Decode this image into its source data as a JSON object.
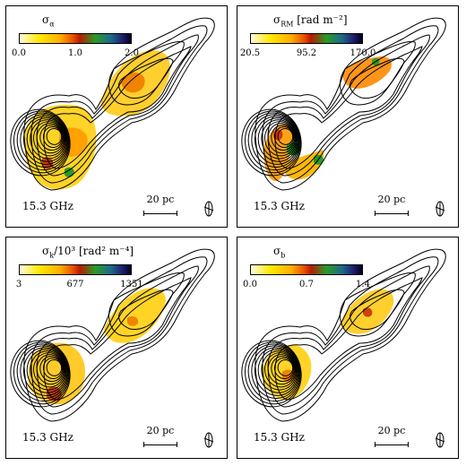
{
  "panels": [
    {
      "colorbar": {
        "label": "σ_α",
        "ticks": [
          "0.0",
          "1.0",
          "2.0"
        ]
      },
      "frequency": "15.3 GHz",
      "scale_bar": "20 pc",
      "fill_pattern": "alpha"
    },
    {
      "colorbar": {
        "label": "σ_RM [rad m⁻²]",
        "ticks": [
          "20.5",
          "95.2",
          "170.0"
        ]
      },
      "frequency": "15.3 GHz",
      "scale_bar": "20 pc",
      "fill_pattern": "rm"
    },
    {
      "colorbar": {
        "label": "σ_k/10³ [rad² m⁻⁴]",
        "ticks": [
          "3",
          "677",
          "1351"
        ]
      },
      "frequency": "15.3 GHz",
      "scale_bar": "20 pc",
      "fill_pattern": "k"
    },
    {
      "colorbar": {
        "label": "σ_b",
        "ticks": [
          "0.0",
          "0.7",
          "1.4"
        ]
      },
      "frequency": "15.3 GHz",
      "scale_bar": "20 pc",
      "fill_pattern": "b"
    }
  ],
  "chart_data": [
    {
      "type": "heatmap",
      "title": "σ_α",
      "colorbar_range": [
        0.0,
        2.0
      ],
      "colorbar_ticks": [
        0.0,
        1.0,
        2.0
      ],
      "colormap": [
        "#fffbe0",
        "#ffe800",
        "#ffb000",
        "#e85000",
        "#b81a00",
        "#2a9a28",
        "#1e6a8a",
        "#202070",
        "#000020"
      ],
      "contours": true,
      "frequency": "15.3 GHz",
      "scale_bar": "20 pc"
    },
    {
      "type": "heatmap",
      "title": "σ_RM [rad m⁻²]",
      "colorbar_range": [
        20.5,
        170.0
      ],
      "colorbar_ticks": [
        20.5,
        95.2,
        170.0
      ],
      "contours": true,
      "frequency": "15.3 GHz",
      "scale_bar": "20 pc"
    },
    {
      "type": "heatmap",
      "title": "σ_k/10³ [rad² m⁻⁴]",
      "colorbar_range": [
        3,
        1351
      ],
      "colorbar_ticks": [
        3,
        677,
        1351
      ],
      "contours": true,
      "frequency": "15.3 GHz",
      "scale_bar": "20 pc"
    },
    {
      "type": "heatmap",
      "title": "σ_b",
      "colorbar_range": [
        0.0,
        1.4
      ],
      "colorbar_ticks": [
        0.0,
        0.7,
        1.4
      ],
      "contours": true,
      "frequency": "15.3 GHz",
      "scale_bar": "20 pc"
    }
  ]
}
